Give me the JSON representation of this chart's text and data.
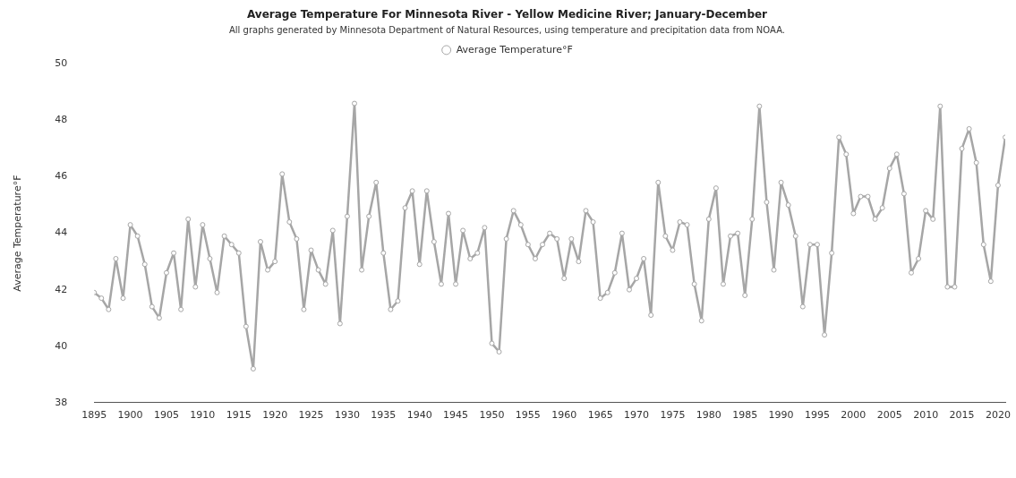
{
  "chart_data": {
    "type": "line",
    "title": "Average Temperature For Minnesota River - Yellow Medicine River; January-December",
    "subtitle": "All graphs generated by Minnesota Department of Natural Resources, using temperature and precipitation data from NOAA.",
    "ylabel": "Average Temperature°F",
    "x": [
      1895,
      1896,
      1897,
      1898,
      1899,
      1900,
      1901,
      1902,
      1903,
      1904,
      1905,
      1906,
      1907,
      1908,
      1909,
      1910,
      1911,
      1912,
      1913,
      1914,
      1915,
      1916,
      1917,
      1918,
      1919,
      1920,
      1921,
      1922,
      1923,
      1924,
      1925,
      1926,
      1927,
      1928,
      1929,
      1930,
      1931,
      1932,
      1933,
      1934,
      1935,
      1936,
      1937,
      1938,
      1939,
      1940,
      1941,
      1942,
      1943,
      1944,
      1945,
      1946,
      1947,
      1948,
      1949,
      1950,
      1951,
      1952,
      1953,
      1954,
      1955,
      1956,
      1957,
      1958,
      1959,
      1960,
      1961,
      1962,
      1963,
      1964,
      1965,
      1966,
      1967,
      1968,
      1969,
      1970,
      1971,
      1972,
      1973,
      1974,
      1975,
      1976,
      1977,
      1978,
      1979,
      1980,
      1981,
      1982,
      1983,
      1984,
      1985,
      1986,
      1987,
      1988,
      1989,
      1990,
      1991,
      1992,
      1993,
      1994,
      1995,
      1996,
      1997,
      1998,
      1999,
      2000,
      2001,
      2002,
      2003,
      2004,
      2005,
      2006,
      2007,
      2008,
      2009,
      2010,
      2011,
      2012,
      2013,
      2014,
      2015,
      2016,
      2017,
      2018,
      2019,
      2020,
      2021
    ],
    "series": [
      {
        "name": "Average Temperature°F",
        "color": "#a6a6a6",
        "values": [
          41.9,
          41.7,
          41.3,
          43.1,
          41.7,
          44.3,
          43.9,
          42.9,
          41.4,
          41.0,
          42.6,
          43.3,
          41.3,
          44.5,
          42.1,
          44.3,
          43.1,
          41.9,
          43.9,
          43.6,
          43.3,
          40.7,
          39.2,
          43.7,
          42.7,
          43.0,
          46.1,
          44.4,
          43.8,
          41.3,
          43.4,
          42.7,
          42.2,
          44.1,
          40.8,
          44.6,
          48.6,
          42.7,
          44.6,
          45.8,
          43.3,
          41.3,
          41.6,
          44.9,
          45.5,
          42.9,
          45.5,
          43.7,
          42.2,
          44.7,
          42.2,
          44.1,
          43.1,
          43.3,
          44.2,
          40.1,
          39.8,
          43.8,
          44.8,
          44.3,
          43.6,
          43.1,
          43.6,
          44.0,
          43.8,
          42.4,
          43.8,
          43.0,
          44.8,
          44.4,
          41.7,
          41.9,
          42.6,
          44.0,
          42.0,
          42.4,
          43.1,
          41.1,
          45.8,
          43.9,
          43.4,
          44.4,
          44.3,
          42.2,
          40.9,
          44.5,
          45.6,
          42.2,
          43.9,
          44.0,
          41.8,
          44.5,
          48.5,
          45.1,
          42.7,
          45.8,
          45.0,
          43.9,
          41.4,
          43.6,
          43.6,
          40.4,
          43.3,
          47.4,
          46.8,
          44.7,
          45.3,
          45.3,
          44.5,
          44.9,
          46.3,
          46.8,
          45.4,
          42.6,
          43.1,
          44.8,
          44.5,
          48.5,
          42.1,
          42.1,
          47.0,
          47.7,
          46.5,
          43.6,
          42.3,
          45.7,
          47.4
        ]
      }
    ],
    "xlim": [
      1895,
      2021
    ],
    "xticks": [
      1895,
      1900,
      1905,
      1910,
      1915,
      1920,
      1925,
      1930,
      1935,
      1940,
      1945,
      1950,
      1955,
      1960,
      1965,
      1970,
      1975,
      1980,
      1985,
      1990,
      1995,
      2000,
      2005,
      2010,
      2015,
      2020
    ],
    "ylim": [
      38,
      50
    ],
    "yticks": [
      38,
      40,
      42,
      44,
      46,
      48,
      50
    ],
    "grid": false,
    "legend": "top",
    "marker": "circle",
    "line_style": "solid"
  }
}
